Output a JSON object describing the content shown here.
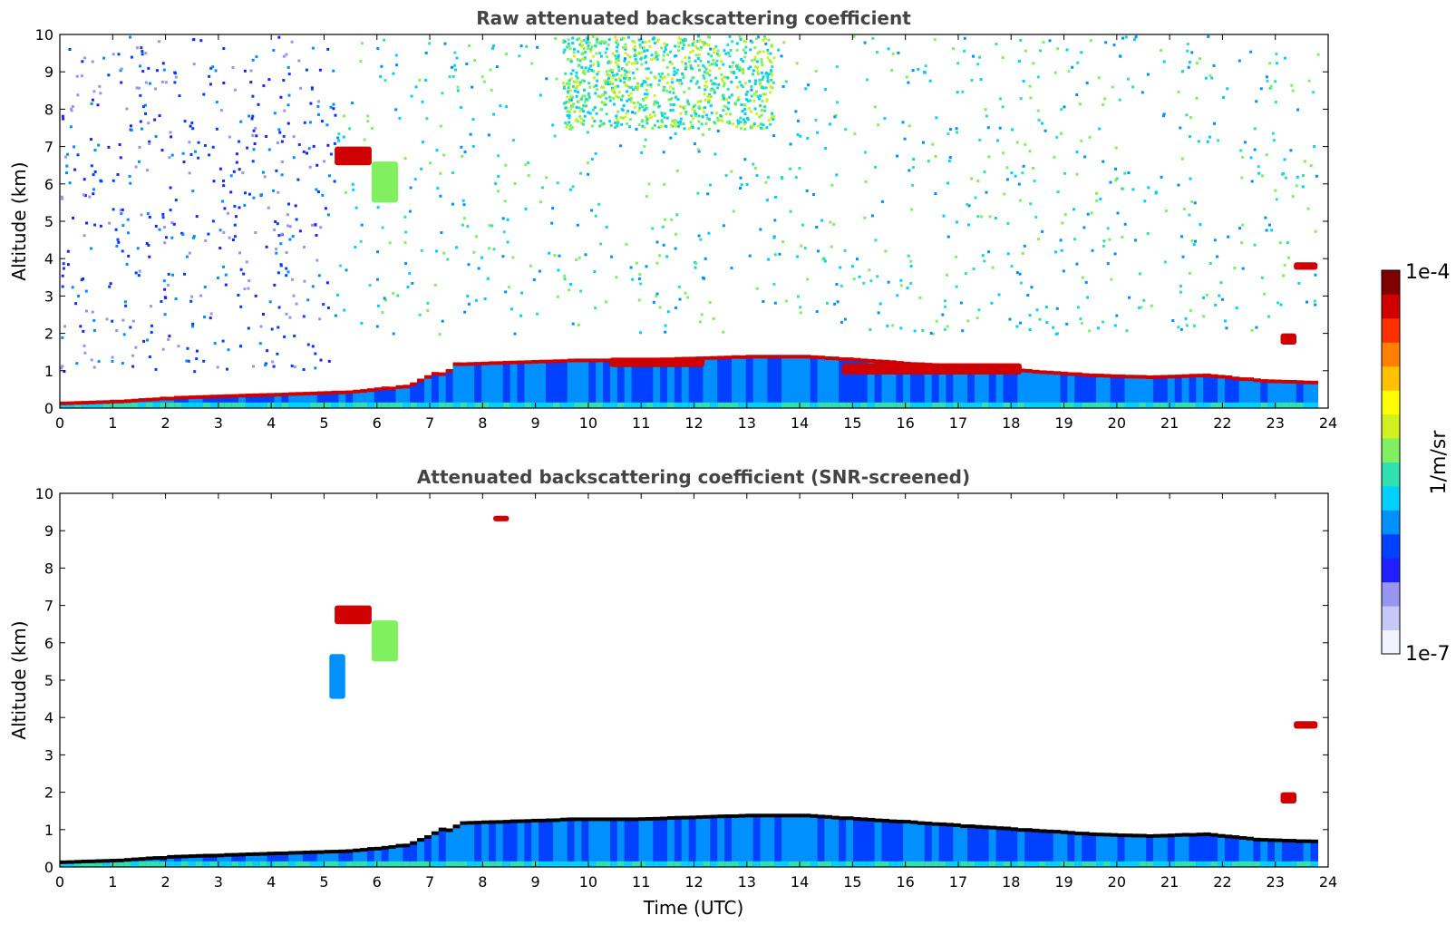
{
  "chart_data": [
    {
      "type": "heatmap",
      "title": "Raw attenuated backscattering coefficient",
      "ylabel": "Altitude (km)",
      "xlabel": "",
      "xlim": [
        0,
        24
      ],
      "ylim": [
        0,
        10
      ],
      "xticks": [
        "0",
        "1",
        "2",
        "3",
        "4",
        "5",
        "6",
        "7",
        "8",
        "9",
        "10",
        "11",
        "12",
        "13",
        "14",
        "15",
        "16",
        "17",
        "18",
        "19",
        "20",
        "21",
        "22",
        "23",
        "24"
      ],
      "yticks": [
        "0",
        "1",
        "2",
        "3",
        "4",
        "5",
        "6",
        "7",
        "8",
        "9",
        "10"
      ],
      "features": [
        {
          "kind": "noise-field",
          "x": [
            0,
            5.2
          ],
          "y": [
            1.0,
            10
          ],
          "level": "low"
        },
        {
          "kind": "noise-field",
          "x": [
            5.2,
            23.8
          ],
          "y": [
            2.0,
            10
          ],
          "level": "medium"
        },
        {
          "kind": "noise-field",
          "x": [
            9.5,
            13.5
          ],
          "y": [
            7.5,
            10
          ],
          "level": "elevated"
        },
        {
          "kind": "boundary-layer",
          "x": [
            0,
            23.8
          ],
          "top_km": [
            0.15,
            0.2,
            0.3,
            0.35,
            0.4,
            0.45,
            0.6,
            1.2,
            1.25,
            1.3,
            1.3,
            1.35,
            1.4,
            1.4,
            1.3,
            1.2,
            1.1,
            1.0,
            0.9,
            0.85,
            0.9,
            0.75,
            0.7
          ]
        },
        {
          "kind": "cloud-layer",
          "x": [
            10.4,
            12.2
          ],
          "y": [
            1.1,
            1.35
          ],
          "level": "high"
        },
        {
          "kind": "cloud-layer",
          "x": [
            14.8,
            18.2
          ],
          "y": [
            0.9,
            1.2
          ],
          "level": "high"
        },
        {
          "kind": "cloud",
          "x": [
            5.2,
            5.9
          ],
          "y": [
            6.5,
            7.0
          ],
          "level": "high"
        },
        {
          "kind": "cloud",
          "x": [
            5.9,
            6.4
          ],
          "y": [
            5.5,
            6.6
          ],
          "level": "medium"
        },
        {
          "kind": "cloud",
          "x": [
            23.35,
            23.8
          ],
          "y": [
            3.7,
            3.9
          ],
          "level": "high"
        },
        {
          "kind": "cloud",
          "x": [
            23.1,
            23.4
          ],
          "y": [
            1.7,
            2.0
          ],
          "level": "high"
        }
      ]
    },
    {
      "type": "heatmap",
      "title": "Attenuated backscattering coefficient (SNR-screened)",
      "ylabel": "Altitude (km)",
      "xlabel": "Time (UTC)",
      "xlim": [
        0,
        24
      ],
      "ylim": [
        0,
        10
      ],
      "xticks": [
        "0",
        "1",
        "2",
        "3",
        "4",
        "5",
        "6",
        "7",
        "8",
        "9",
        "10",
        "11",
        "12",
        "13",
        "14",
        "15",
        "16",
        "17",
        "18",
        "19",
        "20",
        "21",
        "22",
        "23",
        "24"
      ],
      "yticks": [
        "0",
        "1",
        "2",
        "3",
        "4",
        "5",
        "6",
        "7",
        "8",
        "9",
        "10"
      ],
      "features": [
        {
          "kind": "boundary-layer",
          "x": [
            0,
            23.8
          ],
          "top_km": [
            0.15,
            0.2,
            0.3,
            0.35,
            0.4,
            0.45,
            0.6,
            1.2,
            1.25,
            1.3,
            1.3,
            1.35,
            1.4,
            1.4,
            1.3,
            1.2,
            1.1,
            1.0,
            0.9,
            0.85,
            0.9,
            0.75,
            0.7
          ]
        },
        {
          "kind": "cloud",
          "x": [
            5.2,
            5.9
          ],
          "y": [
            6.5,
            7.0
          ],
          "level": "high"
        },
        {
          "kind": "cloud",
          "x": [
            5.9,
            6.4
          ],
          "y": [
            5.5,
            6.6
          ],
          "level": "medium"
        },
        {
          "kind": "cloud",
          "x": [
            5.1,
            5.4
          ],
          "y": [
            4.5,
            5.7
          ],
          "level": "low"
        },
        {
          "kind": "cloud",
          "x": [
            8.2,
            8.5
          ],
          "y": [
            9.25,
            9.4
          ],
          "level": "high"
        },
        {
          "kind": "cloud",
          "x": [
            23.35,
            23.8
          ],
          "y": [
            3.7,
            3.9
          ],
          "level": "high"
        },
        {
          "kind": "cloud",
          "x": [
            23.1,
            23.4
          ],
          "y": [
            1.7,
            2.0
          ],
          "level": "high"
        }
      ]
    }
  ],
  "colorbar": {
    "label": "1/m/sr",
    "max_label": "1e-4",
    "min_label": "1e-7",
    "colors": [
      "#f2f2ff",
      "#c8c8f8",
      "#9696f0",
      "#2020ff",
      "#0040ff",
      "#0090ff",
      "#00d0ff",
      "#30e0b0",
      "#80f060",
      "#d0f020",
      "#ffff00",
      "#ffc000",
      "#ff8000",
      "#ff3000",
      "#d00000",
      "#800000"
    ]
  }
}
